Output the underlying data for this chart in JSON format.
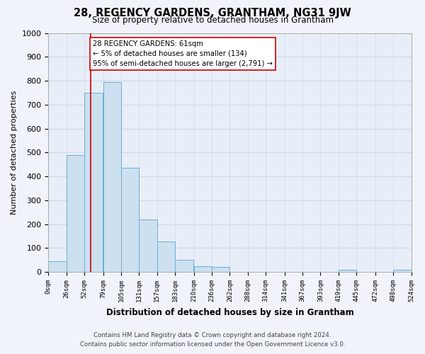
{
  "title": "28, REGENCY GARDENS, GRANTHAM, NG31 9JW",
  "subtitle": "Size of property relative to detached houses in Grantham",
  "xlabel": "Distribution of detached houses by size in Grantham",
  "ylabel": "Number of detached properties",
  "bar_left_edges": [
    0,
    26,
    52,
    79,
    105,
    131,
    157,
    183,
    210,
    236,
    262,
    288,
    314,
    341,
    367,
    393,
    419,
    445,
    472,
    498
  ],
  "bar_heights": [
    45,
    490,
    750,
    795,
    435,
    220,
    127,
    50,
    25,
    20,
    0,
    0,
    0,
    0,
    0,
    0,
    10,
    0,
    0,
    10
  ],
  "bar_color": "#cce0f0",
  "bar_edge_color": "#6aaed6",
  "grid_color": "#d0d8e8",
  "bg_color": "#f0f4fa",
  "plot_bg_color": "#e8eef8",
  "ylim": [
    0,
    1000
  ],
  "yticks": [
    0,
    100,
    200,
    300,
    400,
    500,
    600,
    700,
    800,
    900,
    1000
  ],
  "x_tick_labels": [
    "0sqm",
    "26sqm",
    "52sqm",
    "79sqm",
    "105sqm",
    "131sqm",
    "157sqm",
    "183sqm",
    "210sqm",
    "236sqm",
    "262sqm",
    "288sqm",
    "314sqm",
    "341sqm",
    "367sqm",
    "393sqm",
    "419sqm",
    "445sqm",
    "472sqm",
    "498sqm",
    "524sqm"
  ],
  "property_line_x": 61,
  "property_line_color": "#cc0000",
  "annotation_line1": "28 REGENCY GARDENS: 61sqm",
  "annotation_line2": "← 5% of detached houses are smaller (134)",
  "annotation_line3": "95% of semi-detached houses are larger (2,791) →",
  "annotation_box_color": "#ffffff",
  "annotation_box_edge": "#cc0000",
  "footer_line1": "Contains HM Land Registry data © Crown copyright and database right 2024.",
  "footer_line2": "Contains public sector information licensed under the Open Government Licence v3.0.",
  "bin_width": 26
}
